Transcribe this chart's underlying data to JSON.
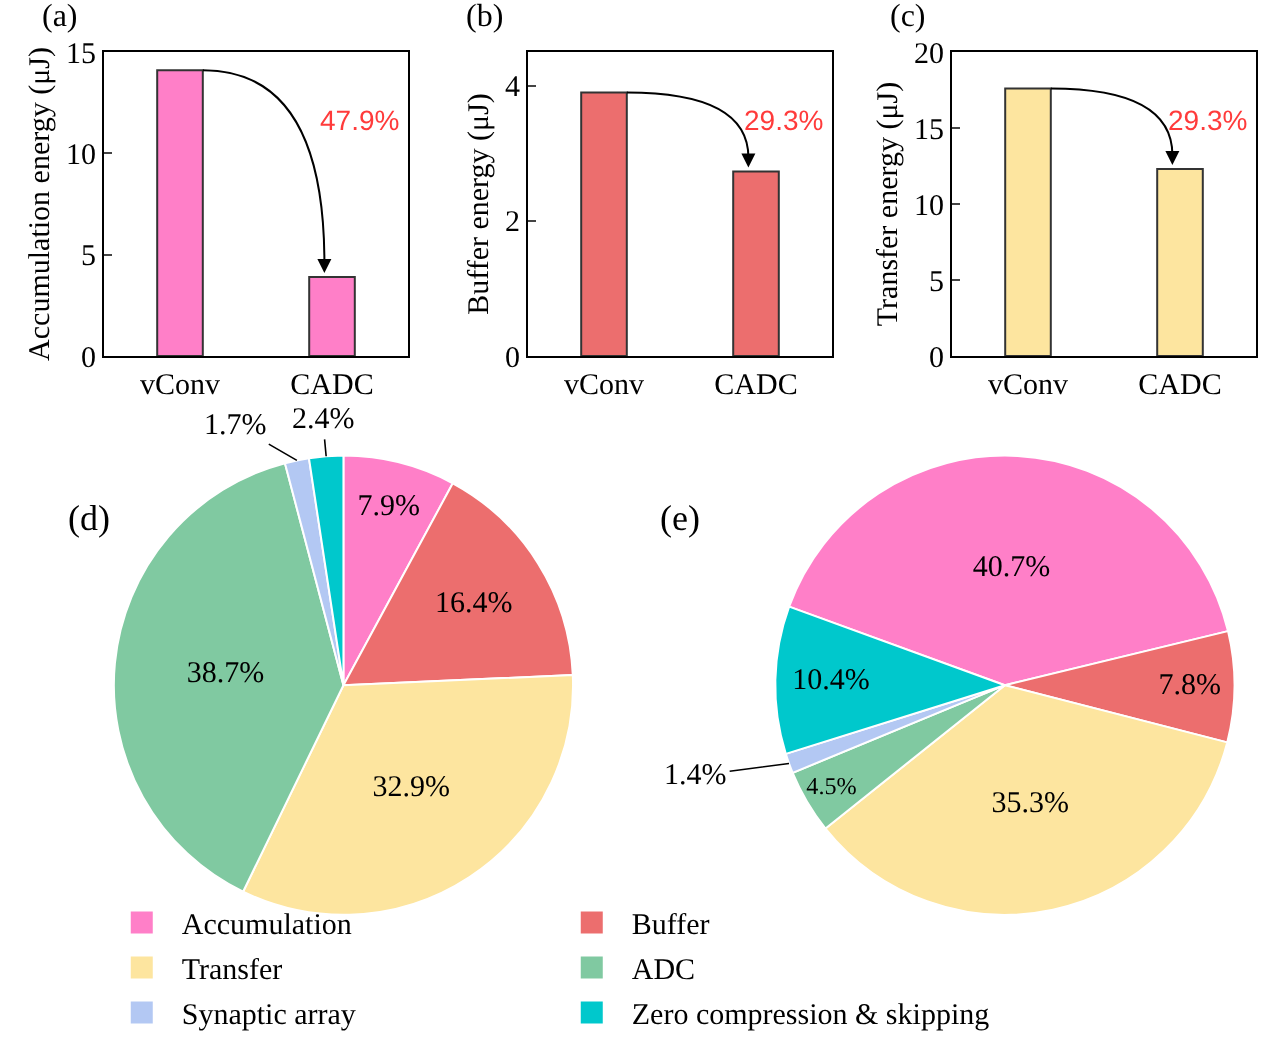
{
  "chart_data": [
    {
      "type": "bar",
      "title": "(a)",
      "ylabel": "Accumulation energy (μJ)",
      "categories": [
        "vConv",
        "CADC"
      ],
      "values": [
        14.1,
        3.9
      ],
      "color": "#ff7fc8",
      "ylim": [
        0,
        15
      ],
      "yticks": [
        0,
        5,
        10,
        15
      ],
      "grid": false,
      "annotations": [
        "47.9%"
      ]
    },
    {
      "type": "bar",
      "title": "(b)",
      "ylabel": "Buffer energy (μJ)",
      "categories": [
        "vConv",
        "CADC"
      ],
      "values": [
        3.9,
        2.73
      ],
      "color": "#ec6e6e",
      "ylim": [
        0,
        4.5
      ],
      "yticks": [
        0,
        2,
        4
      ],
      "grid": false,
      "annotations": [
        "29.3%"
      ]
    },
    {
      "type": "bar",
      "title": "(c)",
      "ylabel": "Transfer energy (μJ)",
      "categories": [
        "vConv",
        "CADC"
      ],
      "values": [
        17.6,
        12.3
      ],
      "color": "#fde59f",
      "ylim": [
        0,
        20
      ],
      "yticks": [
        0,
        5,
        10,
        15,
        20
      ],
      "grid": false,
      "annotations": [
        "29.3%"
      ]
    },
    {
      "type": "pie",
      "annotations": [
        "(d)",
        "(e)"
      ],
      "categories": [
        "Accumulation",
        "Buffer",
        "Transfer",
        "ADC",
        "Synaptic array",
        "Zero compression & skipping"
      ],
      "colors": [
        "#ff7fc8",
        "#ec6e6e",
        "#fde59f",
        "#80c9a1",
        "#b3c8f3",
        "#00c8cc"
      ],
      "legend": "bottom",
      "series": [
        {
          "values": [
            7.9,
            16.4,
            32.9,
            38.7,
            1.7,
            2.4
          ],
          "value_labels": [
            "7.9%",
            "16.4%",
            "32.9%",
            "38.7%",
            "1.7%",
            "2.4%"
          ]
        },
        {
          "values": [
            40.7,
            7.8,
            35.3,
            4.5,
            1.4,
            10.4
          ],
          "value_labels": [
            "40.7%",
            "7.8%",
            "35.3%",
            "4.5%",
            "1.4%",
            "10.4%"
          ]
        }
      ]
    }
  ]
}
